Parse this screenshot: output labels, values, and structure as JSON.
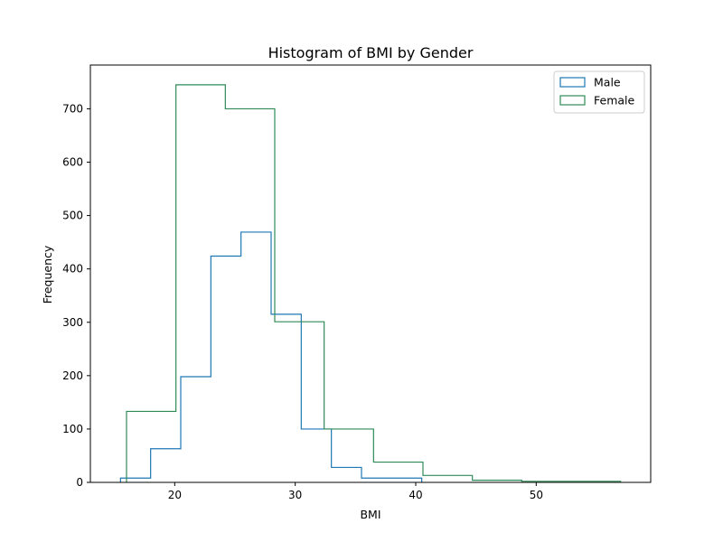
{
  "chart_data": {
    "type": "histogram",
    "title": "Histogram of BMI by Gender",
    "xlabel": "BMI",
    "ylabel": "Frequency",
    "xlim": [
      13.0,
      59.5
    ],
    "ylim": [
      0,
      782
    ],
    "xticks": [
      20,
      30,
      40,
      50
    ],
    "yticks": [
      0,
      100,
      200,
      300,
      400,
      500,
      600,
      700
    ],
    "grid": false,
    "legend_position": "top-right",
    "series": [
      {
        "name": "Male",
        "color": "#1f77b4",
        "bin_edges": [
          15.5,
          18.0,
          20.5,
          23.0,
          25.5,
          28.0,
          30.5,
          33.0,
          35.5,
          38.0,
          40.5
        ],
        "counts": [
          8,
          63,
          198,
          424,
          469,
          315,
          100,
          28,
          8,
          8
        ]
      },
      {
        "name": "Female",
        "color": "#2e8b57",
        "bin_edges": [
          16.0,
          20.1,
          24.2,
          28.3,
          32.4,
          36.5,
          40.6,
          44.7,
          48.8,
          52.9,
          57.0
        ],
        "counts": [
          133,
          745,
          700,
          301,
          100,
          38,
          13,
          4,
          2,
          2
        ]
      }
    ]
  }
}
